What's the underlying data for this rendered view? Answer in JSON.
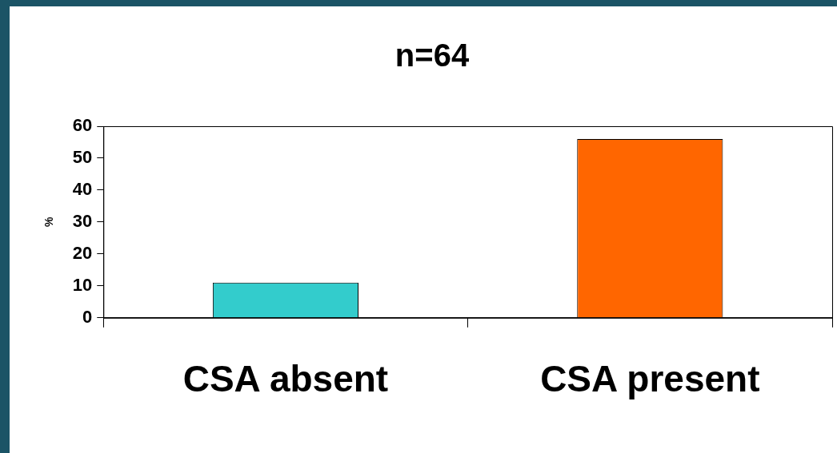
{
  "chart_data": {
    "type": "bar",
    "title": "n=64",
    "ylabel": "%",
    "categories": [
      "CSA absent",
      "CSA present"
    ],
    "values": [
      11,
      56
    ],
    "colors": [
      "#33cccc",
      "#ff6600"
    ],
    "ylim": [
      0,
      60
    ],
    "yticks": [
      0,
      10,
      20,
      30,
      40,
      50,
      60
    ],
    "grid": false,
    "legend": false
  }
}
